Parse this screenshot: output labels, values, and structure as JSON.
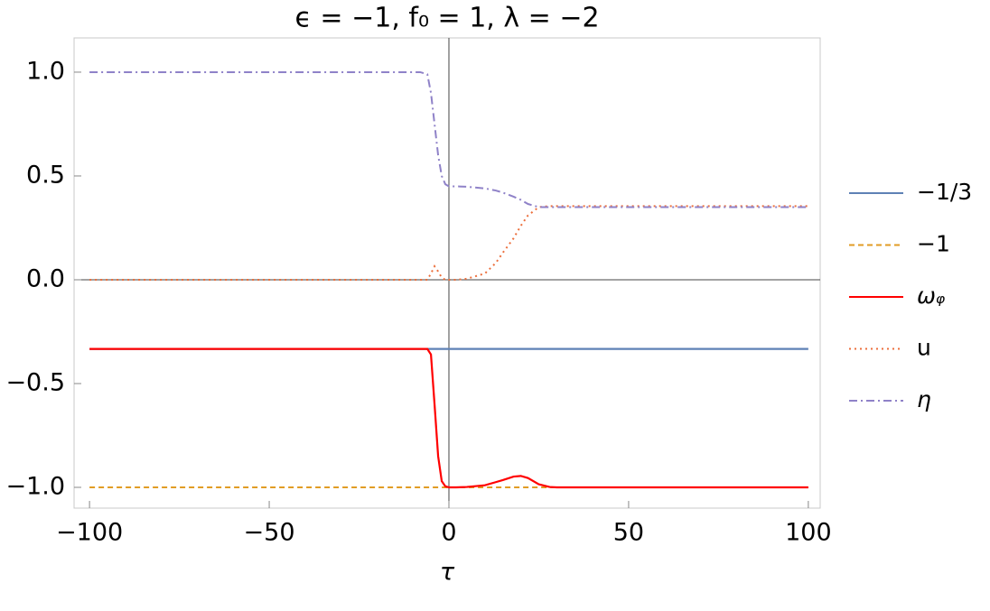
{
  "chart_data": {
    "type": "line",
    "title": "ϵ = −1, f₀ = 1, λ = −2",
    "x_label": "τ",
    "x": [
      -100,
      -8,
      -6,
      -5,
      -4,
      -3,
      -2,
      -1,
      0,
      2,
      5,
      10,
      13,
      15,
      18,
      20,
      22,
      25,
      28,
      30,
      40,
      100
    ],
    "series": [
      {
        "name": "−1/3",
        "color": "#5e81b5",
        "style": "solid",
        "values": [
          -0.3333,
          -0.3333,
          -0.3333,
          -0.3333,
          -0.3333,
          -0.3333,
          -0.3333,
          -0.3333,
          -0.3333,
          -0.3333,
          -0.3333,
          -0.3333,
          -0.3333,
          -0.3333,
          -0.3333,
          -0.3333,
          -0.3333,
          -0.3333,
          -0.3333,
          -0.3333,
          -0.3333,
          -0.3333
        ]
      },
      {
        "name": "−1",
        "color": "#e19c24",
        "style": "dashed",
        "values": [
          -1,
          -1,
          -1,
          -1,
          -1,
          -1,
          -1,
          -1,
          -1,
          -1,
          -1,
          -1,
          -1,
          -1,
          -1,
          -1,
          -1,
          -1,
          -1,
          -1,
          -1,
          -1
        ]
      },
      {
        "name": "ωᵩ",
        "color": "#ff0000",
        "style": "solid",
        "values": [
          -0.3333,
          -0.3333,
          -0.3333,
          -0.36,
          -0.6,
          -0.85,
          -0.97,
          -0.995,
          -1,
          -1,
          -0.998,
          -0.99,
          -0.975,
          -0.965,
          -0.948,
          -0.945,
          -0.955,
          -0.985,
          -0.998,
          -1,
          -1,
          -1
        ]
      },
      {
        "name": "u",
        "color": "#ec6f3c",
        "style": "dotted",
        "values": [
          0,
          0,
          0,
          0.03,
          0.065,
          0.04,
          0.01,
          0,
          0,
          0,
          0.005,
          0.03,
          0.08,
          0.13,
          0.2,
          0.26,
          0.31,
          0.35,
          0.355,
          0.355,
          0.355,
          0.355
        ]
      },
      {
        "name": "η",
        "color": "#8f82c8",
        "style": "dashdot",
        "values": [
          1,
          1,
          0.99,
          0.9,
          0.75,
          0.6,
          0.5,
          0.46,
          0.45,
          0.45,
          0.448,
          0.44,
          0.43,
          0.42,
          0.4,
          0.385,
          0.365,
          0.35,
          0.35,
          0.35,
          0.35,
          0.35
        ]
      }
    ],
    "xlim": [
      -104.3,
      103.3
    ],
    "ylim": [
      -1.1,
      1.165
    ],
    "xticks": [
      {
        "value": -100,
        "label": "−100"
      },
      {
        "value": -50,
        "label": "−50"
      },
      0,
      50,
      100
    ],
    "yticks": [
      {
        "value": 1,
        "label": "1.0"
      },
      0.5,
      {
        "value": 0,
        "label": "0.0"
      },
      {
        "value": -0.5,
        "label": "−0.5"
      },
      {
        "value": -1,
        "label": "−1.0"
      }
    ],
    "legend": "right"
  }
}
